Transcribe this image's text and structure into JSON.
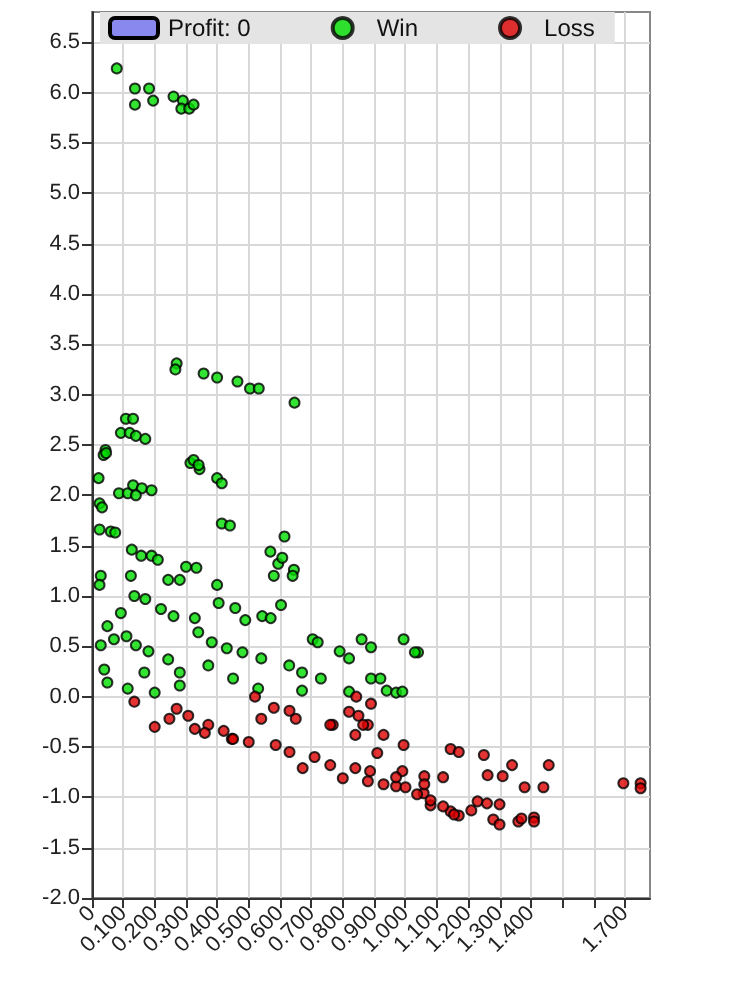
{
  "chart_data": {
    "type": "scatter",
    "legend": "top",
    "grid": true,
    "marker": "circle",
    "xlim": [
      0,
      1.78
    ],
    "ylim": [
      -2,
      6.8
    ],
    "xticks": [
      0,
      {
        "value": 0.1,
        "label": "0.100"
      },
      {
        "value": 0.2,
        "label": "0.200"
      },
      {
        "value": 0.3,
        "label": "0.300"
      },
      {
        "value": 0.4,
        "label": "0.400"
      },
      {
        "value": 0.5,
        "label": "0.500"
      },
      {
        "value": 0.6,
        "label": "0.600"
      },
      {
        "value": 0.7,
        "label": "0.700"
      },
      {
        "value": 0.8,
        "label": "0.800"
      },
      {
        "value": 0.9,
        "label": "0.900"
      },
      {
        "value": 1.0,
        "label": "1.000"
      },
      {
        "value": 1.1,
        "label": "1.100"
      },
      {
        "value": 1.2,
        "label": "1.200"
      },
      {
        "value": 1.3,
        "label": "1.300"
      },
      {
        "value": 1.4,
        "label": "1.400"
      },
      {
        "value": 1.5,
        "label": null
      },
      {
        "value": 1.6,
        "label": null
      },
      {
        "value": 1.7,
        "label": "1.700"
      }
    ],
    "yticks": [
      {
        "value": -2,
        "label": "-2.0"
      },
      -1.5,
      {
        "value": -1,
        "label": "-1.0"
      },
      -0.5,
      {
        "value": 0,
        "label": "0.0"
      },
      0.5,
      {
        "value": 1,
        "label": "1.0"
      },
      1.5,
      {
        "value": 2,
        "label": "2.0"
      },
      2.5,
      {
        "value": 3,
        "label": "3.0"
      },
      3.5,
      {
        "value": 4,
        "label": "4.0"
      },
      4.5,
      {
        "value": 5,
        "label": "5.0"
      },
      5.5,
      {
        "value": 6,
        "label": "6.0"
      },
      6.5
    ],
    "series": [
      {
        "name": "Profit: 0",
        "type": "bar",
        "color": "#8888ee"
      },
      {
        "name": "Win",
        "color": "#00dd00",
        "x": [
          0.079,
          0.137,
          0.182,
          0.137,
          0.195,
          0.26,
          0.29,
          0.285,
          0.31,
          0.324,
          0.27,
          0.266,
          0.356,
          0.399,
          0.464,
          0.504,
          0.532,
          0.646,
          0.108,
          0.131,
          0.092,
          0.12,
          0.14,
          0.17,
          0.043,
          0.037,
          0.045,
          0.021,
          0.314,
          0.324,
          0.343,
          0.34,
          0.399,
          0.414,
          0.086,
          0.114,
          0.131,
          0.159,
          0.14,
          0.19,
          0.024,
          0.032,
          0.024,
          0.06,
          0.074,
          0.414,
          0.44,
          0.614,
          0.569,
          0.594,
          0.607,
          0.644,
          0.58,
          0.64,
          0.603,
          0.127,
          0.157,
          0.19,
          0.21,
          0.124,
          0.028,
          0.024,
          0.243,
          0.28,
          0.333,
          0.3,
          0.399,
          0.404,
          0.457,
          0.489,
          0.543,
          0.57,
          0.135,
          0.17,
          0.22,
          0.26,
          0.328,
          0.339,
          0.092,
          0.049,
          0.028,
          0.07,
          0.11,
          0.14,
          0.18,
          0.039,
          0.049,
          0.114,
          0.167,
          0.243,
          0.28,
          0.382,
          0.43,
          0.48,
          0.54,
          0.629,
          0.67,
          0.704,
          0.72,
          0.79,
          0.82,
          0.86,
          0.89,
          0.994,
          1.04,
          0.371,
          0.45,
          0.53,
          0.67,
          0.73,
          0.82,
          0.89,
          0.94,
          0.2,
          0.28,
          0.92,
          0.97,
          0.99,
          1.03
        ],
        "values": [
          6.24,
          6.04,
          6.04,
          5.88,
          5.92,
          5.96,
          5.92,
          5.84,
          5.84,
          5.88,
          3.31,
          3.25,
          3.21,
          3.17,
          3.13,
          3.06,
          3.06,
          2.92,
          2.76,
          2.76,
          2.62,
          2.62,
          2.59,
          2.56,
          2.45,
          2.4,
          2.42,
          2.17,
          2.32,
          2.35,
          2.26,
          2.3,
          2.17,
          2.12,
          2.02,
          2.02,
          2.1,
          2.07,
          2.0,
          2.05,
          1.92,
          1.88,
          1.66,
          1.64,
          1.63,
          1.72,
          1.7,
          1.59,
          1.44,
          1.32,
          1.38,
          1.26,
          1.2,
          1.2,
          0.91,
          1.46,
          1.4,
          1.4,
          1.36,
          1.2,
          1.2,
          1.11,
          1.16,
          1.16,
          1.28,
          1.29,
          1.11,
          0.93,
          0.88,
          0.76,
          0.8,
          0.78,
          1.0,
          0.97,
          0.87,
          0.8,
          0.78,
          0.64,
          0.83,
          0.7,
          0.51,
          0.57,
          0.6,
          0.51,
          0.45,
          0.27,
          0.14,
          0.08,
          0.24,
          0.37,
          0.24,
          0.54,
          0.48,
          0.44,
          0.38,
          0.31,
          0.24,
          0.57,
          0.54,
          0.45,
          0.38,
          0.57,
          0.49,
          0.57,
          0.44,
          0.31,
          0.18,
          0.08,
          0.06,
          0.18,
          0.05,
          0.18,
          0.06,
          0.04,
          0.11,
          0.18,
          0.04,
          0.05,
          0.44
        ]
      },
      {
        "name": "Loss",
        "color": "#dd0000",
        "x": [
          1.144,
          1.17,
          1.25,
          1.34,
          1.457,
          1.262,
          1.31,
          1.38,
          1.44,
          1.695,
          1.75,
          1.75,
          1.23,
          1.26,
          1.3,
          1.21,
          1.28,
          1.3,
          1.36,
          1.37,
          1.41,
          1.41,
          1.144,
          1.17,
          1.08,
          1.058,
          0.247,
          0.328,
          0.42,
          0.446,
          0.5,
          0.586,
          0.63,
          0.672,
          0.76,
          0.84,
          0.8,
          0.88,
          0.93,
          0.97,
          1.037,
          1.08,
          1.12,
          1.155,
          0.99,
          1.06,
          0.91,
          0.994,
          0.84,
          0.768,
          0.88,
          0.65,
          0.54,
          0.135,
          0.307,
          0.27,
          0.371,
          0.52,
          0.58,
          0.63,
          0.82,
          0.85,
          0.76,
          0.843,
          0.89,
          0.865,
          0.93,
          0.887,
          0.97,
          1.06,
          1.12,
          0.2,
          0.36,
          0.45,
          0.71,
          1.0
        ],
        "values": [
          -0.52,
          -0.55,
          -0.58,
          -0.68,
          -0.68,
          -0.78,
          -0.79,
          -0.9,
          -0.9,
          -0.86,
          -0.86,
          -0.91,
          -1.04,
          -1.06,
          -1.07,
          -1.13,
          -1.22,
          -1.27,
          -1.24,
          -1.21,
          -1.2,
          -1.24,
          -1.14,
          -1.18,
          -1.08,
          -0.96,
          -0.22,
          -0.32,
          -0.34,
          -0.42,
          -0.45,
          -0.48,
          -0.55,
          -0.71,
          -0.68,
          -0.71,
          -0.81,
          -0.84,
          -0.87,
          -0.89,
          -0.97,
          -1.03,
          -1.09,
          -1.17,
          -0.74,
          -0.79,
          -0.56,
          -0.48,
          -0.38,
          -0.28,
          -0.28,
          -0.22,
          -0.22,
          -0.05,
          -0.19,
          -0.12,
          -0.28,
          0,
          -0.11,
          -0.14,
          -0.15,
          -0.19,
          -0.28,
          0.0,
          -0.07,
          -0.28,
          -0.38,
          -0.74,
          -0.8,
          -0.87,
          -0.8,
          -0.3,
          -0.36,
          -0.42,
          -0.6,
          -0.9
        ]
      }
    ]
  }
}
